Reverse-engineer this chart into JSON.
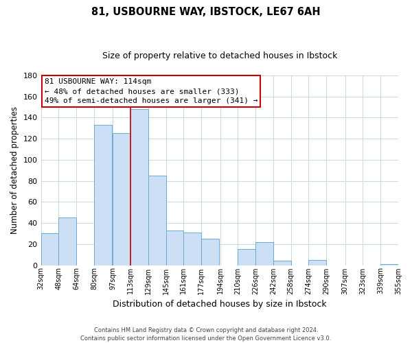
{
  "title": "81, USBOURNE WAY, IBSTOCK, LE67 6AH",
  "subtitle": "Size of property relative to detached houses in Ibstock",
  "xlabel": "Distribution of detached houses by size in Ibstock",
  "ylabel": "Number of detached properties",
  "bar_left_edges": [
    32,
    48,
    64,
    80,
    97,
    113,
    129,
    145,
    161,
    177,
    194,
    210,
    226,
    242,
    258,
    274,
    290,
    307,
    323,
    339
  ],
  "bar_heights": [
    30,
    45,
    0,
    133,
    125,
    148,
    85,
    33,
    31,
    25,
    0,
    15,
    22,
    4,
    0,
    5,
    0,
    0,
    0,
    1
  ],
  "bar_widths": [
    16,
    16,
    16,
    16,
    16,
    16,
    16,
    16,
    16,
    16,
    16,
    16,
    16,
    16,
    16,
    16,
    16,
    16,
    16,
    16
  ],
  "tick_labels": [
    "32sqm",
    "48sqm",
    "64sqm",
    "80sqm",
    "97sqm",
    "113sqm",
    "129sqm",
    "145sqm",
    "161sqm",
    "177sqm",
    "194sqm",
    "210sqm",
    "226sqm",
    "242sqm",
    "258sqm",
    "274sqm",
    "290sqm",
    "307sqm",
    "323sqm",
    "339sqm",
    "355sqm"
  ],
  "bar_color": "#ccdff5",
  "bar_edge_color": "#6aabd2",
  "vline_x": 113,
  "vline_color": "#cc0000",
  "ylim": [
    0,
    180
  ],
  "yticks": [
    0,
    20,
    40,
    60,
    80,
    100,
    120,
    140,
    160,
    180
  ],
  "annotation_title": "81 USBOURNE WAY: 114sqm",
  "annotation_line1": "← 48% of detached houses are smaller (333)",
  "annotation_line2": "49% of semi-detached houses are larger (341) →",
  "footer1": "Contains HM Land Registry data © Crown copyright and database right 2024.",
  "footer2": "Contains public sector information licensed under the Open Government Licence v3.0.",
  "background_color": "#ffffff",
  "grid_color": "#c8d8e8",
  "title_fontsize": 10.5,
  "subtitle_fontsize": 9,
  "ylabel_fontsize": 8.5,
  "xlabel_fontsize": 9,
  "ytick_fontsize": 8,
  "xtick_fontsize": 7,
  "annotation_fontsize": 8,
  "footer_fontsize": 6
}
